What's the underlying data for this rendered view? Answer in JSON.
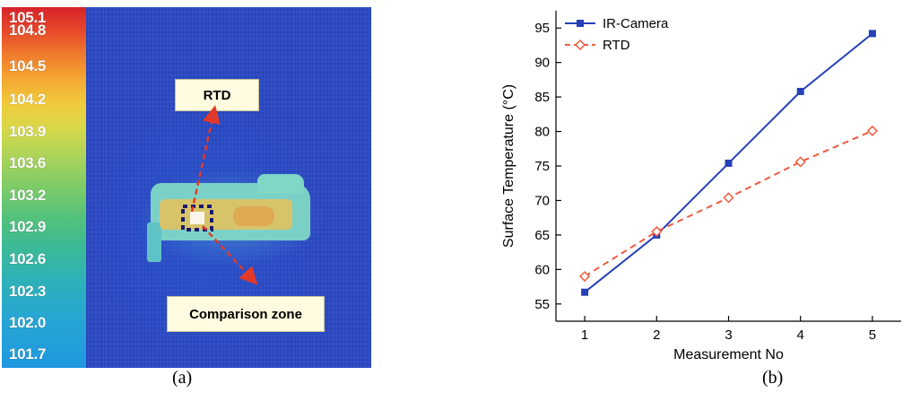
{
  "panel_a": {
    "caption": "(a)",
    "colorbar_ticks": [
      "105.1",
      "104.8",
      "104.5",
      "104.2",
      "103.9",
      "103.6",
      "103.2",
      "102.9",
      "102.6",
      "102.3",
      "102.0",
      "101.7"
    ],
    "callout_rtd": "RTD",
    "callout_zone": "Comparison zone"
  },
  "panel_b": {
    "caption": "(b)"
  },
  "chart_data": {
    "type": "line",
    "title": "",
    "xlabel": "Measurement No",
    "ylabel": "Surface Temperature (°C)",
    "x": [
      1,
      2,
      3,
      4,
      5
    ],
    "xlim": [
      0.6,
      5.4
    ],
    "ylim": [
      52.5,
      97.5
    ],
    "xticks": [
      "1",
      "2",
      "3",
      "4",
      "5"
    ],
    "yticks": [
      "55",
      "60",
      "65",
      "70",
      "75",
      "80",
      "85",
      "90",
      "95"
    ],
    "grid": false,
    "legend_position": "top-left",
    "series": [
      {
        "name": "IR-Camera",
        "values": [
          56.7,
          65.0,
          75.4,
          85.8,
          94.2
        ],
        "color": "#2540b8",
        "line": "solid",
        "marker": "filled-square"
      },
      {
        "name": "RTD",
        "values": [
          59.0,
          65.5,
          70.4,
          75.6,
          80.1
        ],
        "color": "#f05a40",
        "line": "dashed",
        "marker": "open-diamond"
      }
    ]
  }
}
